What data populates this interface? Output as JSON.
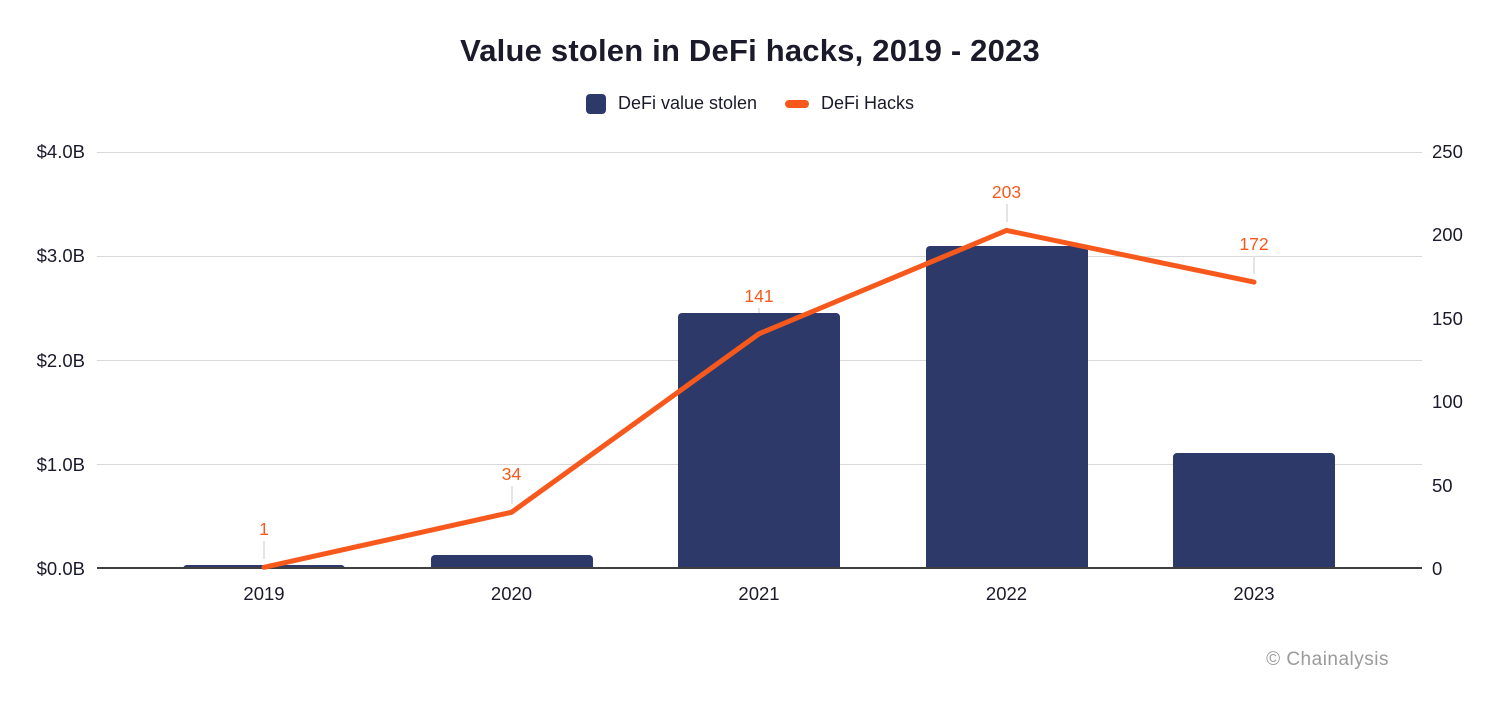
{
  "title": "Value stolen in DeFi hacks, 2019 - 2023",
  "legend": [
    {
      "label": "DeFi value stolen",
      "shape": "square",
      "color": "#2d3a69"
    },
    {
      "label": "DeFi Hacks",
      "shape": "dash",
      "color": "#f7591d"
    }
  ],
  "watermark": "© Chainalysis",
  "colors": {
    "bar": "#2d3a69",
    "line": "#f7591d",
    "grid": "#d9d9d9",
    "axis": "#3f3f3f",
    "text": "#1a1a2b",
    "muted": "#9b9b9b",
    "leader": "#e4e4e4"
  },
  "chart_data": {
    "type": "combo",
    "categories": [
      "2019",
      "2020",
      "2021",
      "2022",
      "2023"
    ],
    "series": [
      {
        "name": "DeFi value stolen",
        "type": "bar",
        "axis": "left",
        "unit": "USD billions",
        "values": [
          0.04,
          0.13,
          2.46,
          3.1,
          1.11
        ]
      },
      {
        "name": "DeFi Hacks",
        "type": "line",
        "axis": "right",
        "values": [
          1,
          34,
          141,
          203,
          172
        ],
        "point_labels": [
          "1",
          "34",
          "141",
          "203",
          "172"
        ]
      }
    ],
    "y_axis_left": {
      "ticks": [
        "$4.0B",
        "$3.0B",
        "$2.0B",
        "$1.0B",
        "$0.0B"
      ],
      "values": [
        4,
        3,
        2,
        1,
        0
      ],
      "range": [
        0,
        4
      ]
    },
    "y_axis_right": {
      "ticks": [
        "250",
        "200",
        "150",
        "100",
        "50",
        "0"
      ],
      "values": [
        250,
        200,
        150,
        100,
        50,
        0
      ],
      "range": [
        0,
        250
      ]
    },
    "grid": "horizontal",
    "legend_position": "top"
  }
}
